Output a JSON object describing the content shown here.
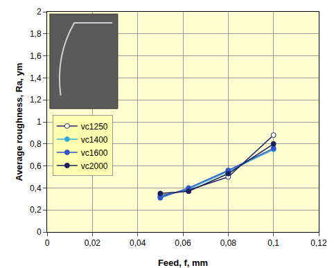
{
  "chart_data": {
    "type": "line",
    "x_label": "Feed, f, mm",
    "y_label": "Average roughness, Ra, ym",
    "xlim": [
      0,
      0.12
    ],
    "xticks": [
      0,
      {
        "value": 0.02,
        "label": "0,02"
      },
      {
        "value": 0.04,
        "label": "0,04"
      },
      {
        "value": 0.06,
        "label": "0,06"
      },
      {
        "value": 0.08,
        "label": "0,08"
      },
      {
        "value": 0.1,
        "label": "0,1"
      },
      {
        "value": 0.12,
        "label": "0,12"
      }
    ],
    "ylim": [
      0,
      2
    ],
    "yticks": [
      0,
      {
        "value": 0.2,
        "label": "0,2"
      },
      {
        "value": 0.4,
        "label": "0,4"
      },
      {
        "value": 0.6,
        "label": "0,6"
      },
      {
        "value": 0.8,
        "label": "0,8"
      },
      1,
      {
        "value": 1.2,
        "label": "1,2"
      },
      {
        "value": 1.4,
        "label": "1,4"
      },
      {
        "value": 1.6,
        "label": "1,6"
      },
      {
        "value": 1.8,
        "label": "1,8"
      },
      2
    ],
    "grid": true,
    "legend": "left",
    "x": [
      0.05,
      0.0625,
      0.08,
      0.1
    ],
    "series": [
      {
        "name": "vc1250",
        "color": "#1a2a6c",
        "marker": "open_circle",
        "values": [
          0.33,
          0.38,
          0.5,
          0.88
        ]
      },
      {
        "name": "vc1400",
        "color": "#33aadd",
        "marker": "circle",
        "values": [
          0.32,
          0.39,
          0.55,
          0.75
        ]
      },
      {
        "name": "vc1600",
        "color": "#3355cc",
        "marker": "circle",
        "values": [
          0.31,
          0.4,
          0.56,
          0.76
        ]
      },
      {
        "name": "vc2000",
        "color": "#1a1f5c",
        "marker": "circle",
        "values": [
          0.35,
          0.37,
          0.53,
          0.8
        ]
      }
    ]
  }
}
